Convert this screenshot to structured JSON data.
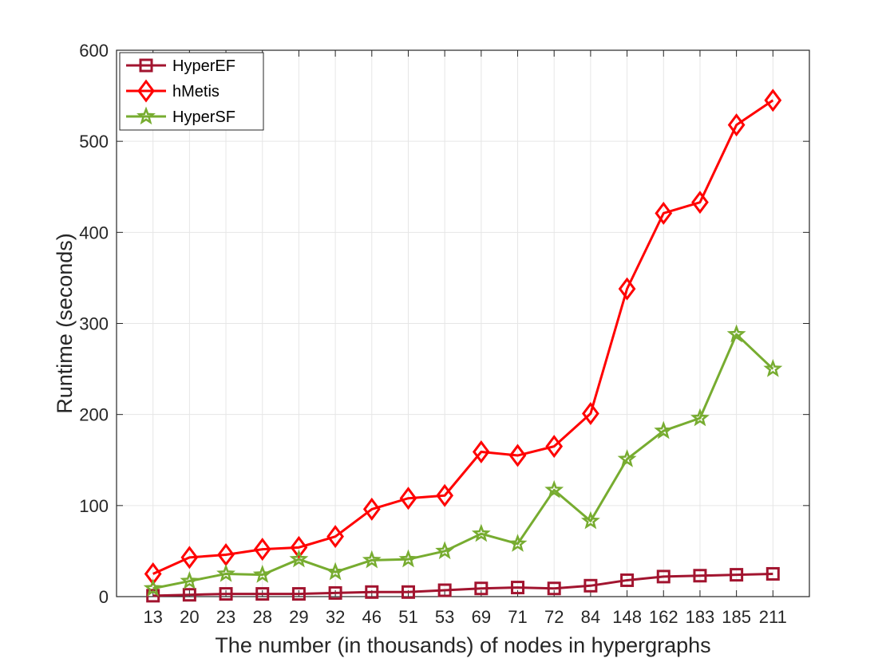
{
  "chart_data": {
    "type": "line",
    "title": "",
    "xlabel": "The number (in thousands) of nodes in hypergraphs",
    "ylabel": "Runtime (seconds)",
    "categories": [
      "13",
      "20",
      "23",
      "28",
      "29",
      "32",
      "46",
      "51",
      "53",
      "69",
      "71",
      "72",
      "84",
      "148",
      "162",
      "183",
      "185",
      "211"
    ],
    "ylim": [
      0,
      600
    ],
    "yticks": [
      0,
      100,
      200,
      300,
      400,
      500,
      600
    ],
    "grid": true,
    "legend_position": "top-left",
    "series": [
      {
        "name": "HyperEF",
        "marker": "square",
        "color": "#a2142f",
        "values": [
          1,
          2,
          3,
          3,
          3,
          4,
          5,
          5,
          7,
          9,
          10,
          9,
          12,
          18,
          22,
          23,
          24,
          25
        ]
      },
      {
        "name": "hMetis",
        "marker": "diamond",
        "color": "#ff0000",
        "values": [
          25,
          43,
          46,
          52,
          54,
          66,
          96,
          108,
          111,
          159,
          155,
          165,
          201,
          338,
          421,
          433,
          518,
          545
        ]
      },
      {
        "name": "HyperSF",
        "marker": "pentagram",
        "color": "#77ac30",
        "values": [
          9,
          17,
          25,
          24,
          41,
          27,
          40,
          41,
          50,
          69,
          58,
          117,
          83,
          151,
          182,
          196,
          288,
          250
        ]
      }
    ]
  }
}
